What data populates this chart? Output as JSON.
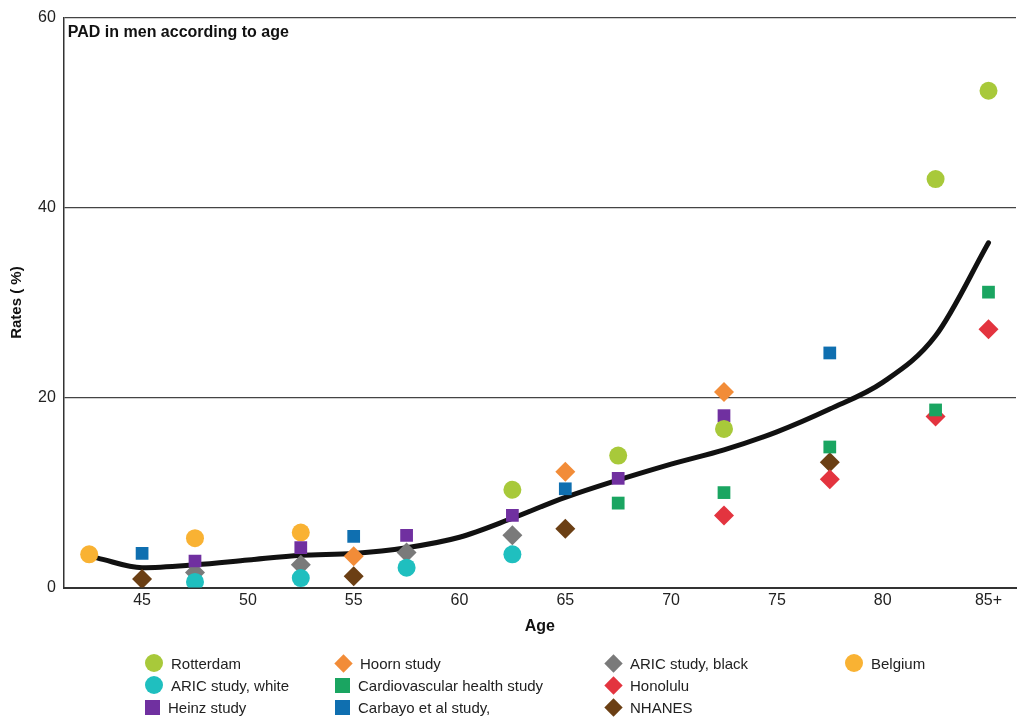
{
  "chart_data": {
    "type": "scatter",
    "title": "PAD in men according to age",
    "xlabel": "Age",
    "ylabel": "Rates ( %)",
    "xlim": [
      41.3,
      86.3
    ],
    "xticks": [
      45,
      50,
      55,
      60,
      65,
      70,
      75,
      80,
      {
        "value": 85,
        "label": "85+"
      }
    ],
    "ylim": [
      0,
      60
    ],
    "yticks": [
      0,
      20,
      40,
      60
    ],
    "grid": "y",
    "legend": "bottom",
    "series": [
      {
        "name": "Rotterdam",
        "color": "#a8c93a",
        "marker": "circle",
        "x": [
          62.5,
          67.5,
          72.5,
          82.5,
          85
        ],
        "values": [
          10.3,
          13.9,
          16.7,
          43.0,
          52.3
        ]
      },
      {
        "name": "ARIC study, white",
        "color": "#1fbfbf",
        "marker": "circle",
        "x": [
          47.5,
          52.5,
          57.5,
          62.5
        ],
        "values": [
          0.6,
          1.0,
          2.1,
          3.5
        ]
      },
      {
        "name": "Heinz study",
        "color": "#7030a0",
        "marker": "square",
        "x": [
          47.5,
          52.5,
          57.5,
          62.5,
          67.5,
          72.5
        ],
        "values": [
          2.8,
          4.2,
          5.5,
          7.6,
          11.5,
          18.1
        ]
      },
      {
        "name": "Hoorn study",
        "color": "#f28c38",
        "marker": "diamond",
        "x": [
          55,
          65,
          72.5
        ],
        "values": [
          3.3,
          12.2,
          20.6
        ]
      },
      {
        "name": "Cardiovascular health study",
        "color": "#1aa561",
        "marker": "square",
        "x": [
          67.5,
          72.5,
          77.5,
          82.5,
          85
        ],
        "values": [
          8.9,
          10.0,
          14.8,
          18.7,
          31.1
        ]
      },
      {
        "name": "Carbayo et al study,",
        "color": "#0f6fb0",
        "marker": "square",
        "x": [
          45,
          55,
          65,
          77.5
        ],
        "values": [
          3.6,
          5.4,
          10.4,
          24.7
        ]
      },
      {
        "name": "ARIC study, black",
        "color": "#7a7a7a",
        "marker": "diamond",
        "x": [
          47.5,
          52.5,
          57.5,
          62.5
        ],
        "values": [
          1.6,
          2.4,
          3.7,
          5.5
        ]
      },
      {
        "name": "Honolulu",
        "color": "#e3343f",
        "marker": "diamond",
        "x": [
          72.5,
          77.5,
          82.5,
          85
        ],
        "values": [
          7.6,
          11.4,
          18.0,
          27.2
        ]
      },
      {
        "name": "NHANES",
        "color": "#6b3f14",
        "marker": "diamond",
        "x": [
          45,
          55,
          65,
          77.5
        ],
        "values": [
          0.9,
          1.2,
          6.2,
          13.2
        ]
      },
      {
        "name": "Belgium",
        "color": "#f9b233",
        "marker": "circle",
        "x": [
          42.5,
          47.5,
          52.5
        ],
        "values": [
          3.5,
          5.2,
          5.8
        ]
      },
      {
        "type": "line",
        "color": "#111111",
        "marker": "none",
        "line_style": "solid",
        "x": [
          42.9,
          45,
          47.5,
          50,
          52.5,
          55,
          57.5,
          60,
          62.5,
          65,
          70,
          72.5,
          75,
          77.5,
          80,
          82.5,
          85
        ],
        "values": [
          3.1,
          2.1,
          2.4,
          2.9,
          3.4,
          3.6,
          4.2,
          5.3,
          7.3,
          9.5,
          13.0,
          14.5,
          16.4,
          18.8,
          21.6,
          26.5,
          36.3
        ]
      }
    ]
  }
}
